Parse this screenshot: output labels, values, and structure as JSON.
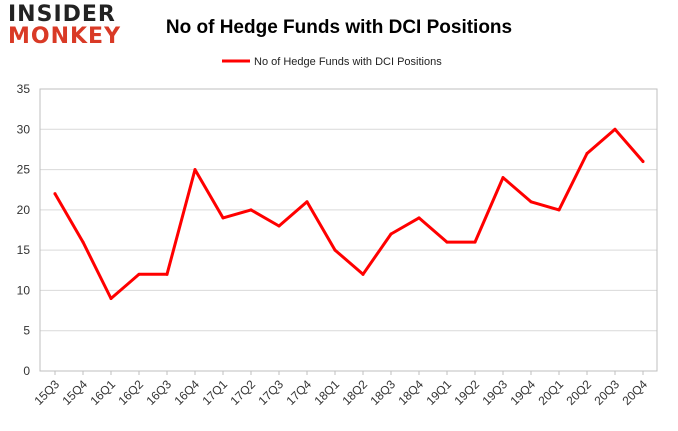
{
  "logo": {
    "line1": "INSIDER",
    "line2": "MONKEY"
  },
  "chart_data": {
    "type": "line",
    "title": "No of Hedge Funds with DCI Positions",
    "xlabel": "",
    "ylabel": "",
    "ylim": [
      0,
      35
    ],
    "yticks": [
      0,
      5,
      10,
      15,
      20,
      25,
      30,
      35
    ],
    "grid": true,
    "legend_position": "top-center",
    "categories": [
      "15Q3",
      "15Q4",
      "16Q1",
      "16Q2",
      "16Q3",
      "16Q4",
      "17Q1",
      "17Q2",
      "17Q3",
      "17Q4",
      "18Q1",
      "18Q2",
      "18Q3",
      "18Q4",
      "19Q1",
      "19Q2",
      "19Q3",
      "19Q4",
      "20Q1",
      "20Q2",
      "20Q3",
      "20Q4"
    ],
    "series": [
      {
        "name": "No of Hedge Funds with DCI Positions",
        "color": "#ff0000",
        "values": [
          22,
          16,
          9,
          12,
          12,
          25,
          19,
          20,
          18,
          21,
          15,
          12,
          17,
          19,
          16,
          16,
          24,
          21,
          20,
          27,
          30,
          26
        ]
      }
    ]
  }
}
